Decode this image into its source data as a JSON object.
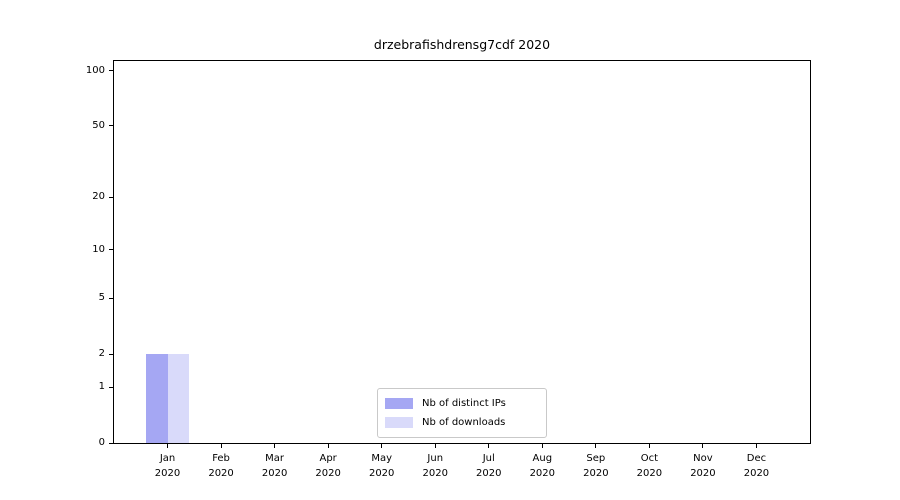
{
  "title": "drzebrafishdrensg7cdf 2020",
  "colors": {
    "distinct_ips": "#a5a7f3",
    "downloads": "#d9dafa",
    "grid_major": "#d7d7d7",
    "grid_minor": "#ededed",
    "spine": "#000000",
    "text": "#000000",
    "legend_border": "#c9c9c9",
    "background": "#ffffff"
  },
  "legend": {
    "items": [
      {
        "label": "Nb of distinct IPs",
        "color": "#a5a7f3"
      },
      {
        "label": "Nb of downloads",
        "color": "#d9dafa"
      }
    ]
  },
  "chart_data": {
    "type": "bar",
    "title": "drzebrafishdrensg7cdf 2020",
    "categories": [
      "Jan 2020",
      "Feb 2020",
      "Mar 2020",
      "Apr 2020",
      "May 2020",
      "Jun 2020",
      "Jul 2020",
      "Aug 2020",
      "Sep 2020",
      "Oct 2020",
      "Nov 2020",
      "Dec 2020"
    ],
    "series": [
      {
        "name": "Nb of distinct IPs",
        "color": "#a5a7f3",
        "values": [
          2,
          0,
          0,
          0,
          0,
          0,
          0,
          0,
          0,
          0,
          0,
          0
        ]
      },
      {
        "name": "Nb of downloads",
        "color": "#d9dafa",
        "values": [
          2,
          0,
          0,
          0,
          0,
          0,
          0,
          0,
          0,
          0,
          0,
          0
        ]
      }
    ],
    "xlabel": "",
    "ylabel": "",
    "yscale": "log1p",
    "ylim": [
      0,
      113
    ],
    "yticks": [
      0,
      1,
      2,
      5,
      10,
      20,
      50,
      100
    ],
    "yticks_minor": [
      3,
      4,
      6,
      7,
      8,
      9,
      30,
      40,
      60,
      70,
      80,
      90
    ],
    "grid": true,
    "legend_position": "lower center"
  }
}
